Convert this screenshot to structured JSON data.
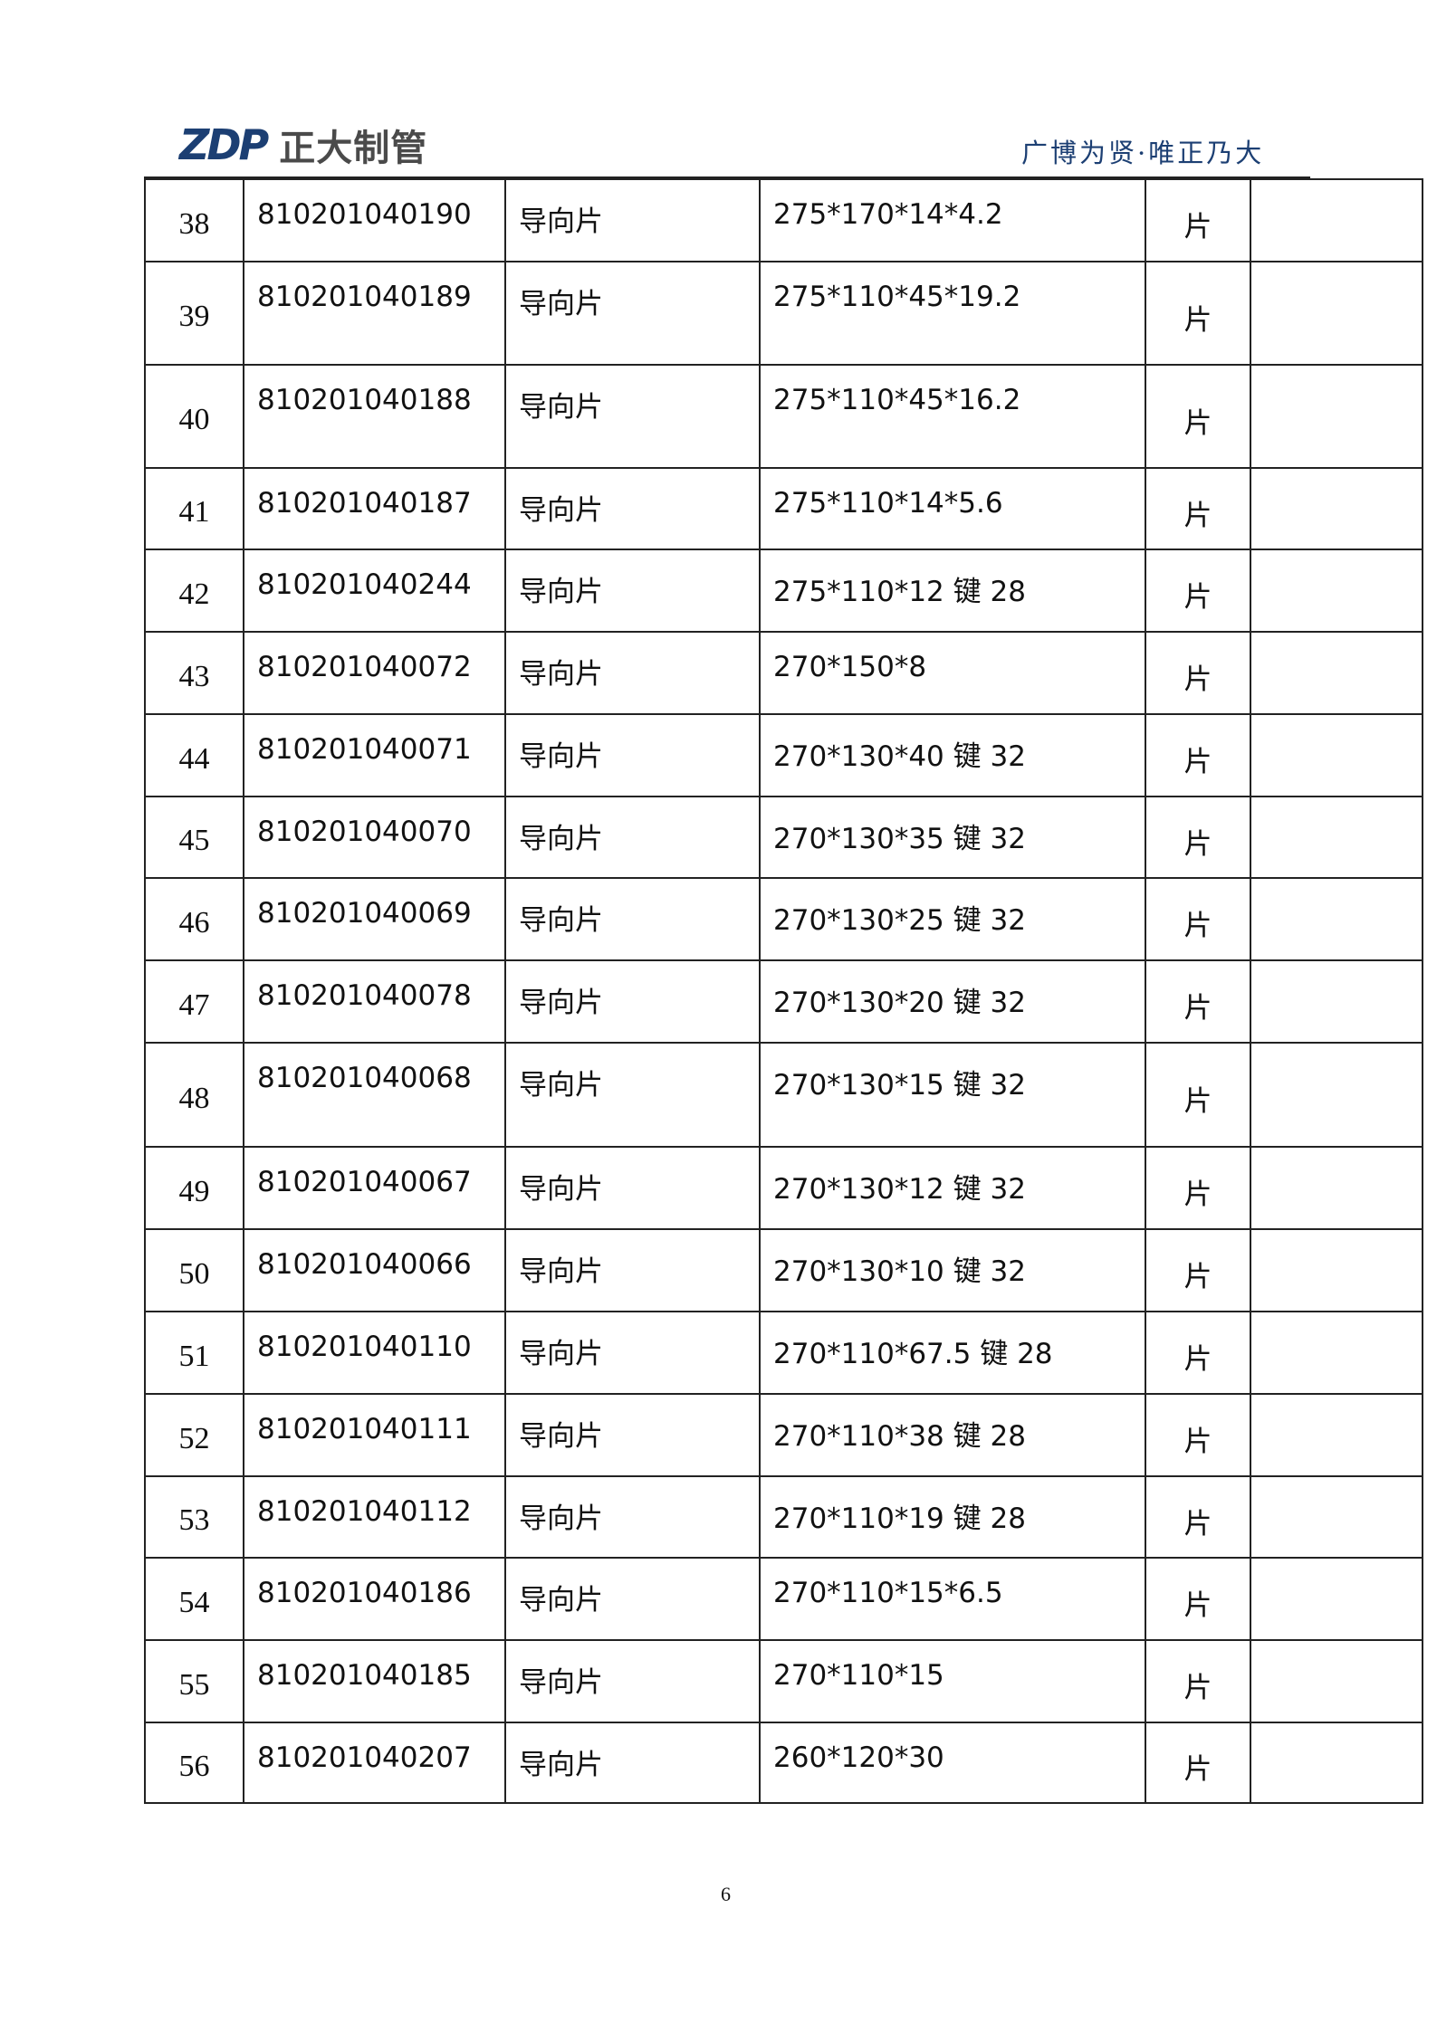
{
  "header": {
    "logo_mark": "ZDP",
    "logo_text": "正大制管",
    "slogan": "广博为贤·唯正乃大",
    "brand_color": "#1c3f73"
  },
  "table": {
    "rows": [
      {
        "no": "38",
        "code": "810201040190",
        "name": "导向片",
        "spec": "275*170*14*4.2",
        "unit": "片",
        "note": "",
        "h": 91
      },
      {
        "no": "39",
        "code": "810201040189",
        "name": "导向片",
        "spec": "275*110*45*19.2",
        "unit": "片",
        "note": "",
        "h": 114
      },
      {
        "no": "40",
        "code": "810201040188",
        "name": "导向片",
        "spec": "275*110*45*16.2",
        "unit": "片",
        "note": "",
        "h": 114
      },
      {
        "no": "41",
        "code": "810201040187",
        "name": "导向片",
        "spec": "275*110*14*5.6",
        "unit": "片",
        "note": "",
        "h": 90
      },
      {
        "no": "42",
        "code": "810201040244",
        "name": "导向片",
        "spec": "275*110*12 键 28",
        "unit": "片",
        "note": "",
        "h": 91
      },
      {
        "no": "43",
        "code": "810201040072",
        "name": "导向片",
        "spec": "270*150*8",
        "unit": "片",
        "note": "",
        "h": 91
      },
      {
        "no": "44",
        "code": "810201040071",
        "name": "导向片",
        "spec": "270*130*40 键 32",
        "unit": "片",
        "note": "",
        "h": 91
      },
      {
        "no": "45",
        "code": "810201040070",
        "name": "导向片",
        "spec": "270*130*35 键 32",
        "unit": "片",
        "note": "",
        "h": 90
      },
      {
        "no": "46",
        "code": "810201040069",
        "name": "导向片",
        "spec": "270*130*25 键 32",
        "unit": "片",
        "note": "",
        "h": 91
      },
      {
        "no": "47",
        "code": "810201040078",
        "name": "导向片",
        "spec": "270*130*20 键 32",
        "unit": "片",
        "note": "",
        "h": 91
      },
      {
        "no": "48",
        "code": "810201040068",
        "name": "导向片",
        "spec": "270*130*15 键 32",
        "unit": "片",
        "note": "",
        "h": 115
      },
      {
        "no": "49",
        "code": "810201040067",
        "name": "导向片",
        "spec": "270*130*12 键 32",
        "unit": "片",
        "note": "",
        "h": 91
      },
      {
        "no": "50",
        "code": "810201040066",
        "name": "导向片",
        "spec": "270*130*10 键 32",
        "unit": "片",
        "note": "",
        "h": 91
      },
      {
        "no": "51",
        "code": "810201040110",
        "name": "导向片",
        "spec": "270*110*67.5 键 28",
        "unit": "片",
        "note": "",
        "h": 91
      },
      {
        "no": "52",
        "code": "810201040111",
        "name": "导向片",
        "spec": "270*110*38 键 28",
        "unit": "片",
        "note": "",
        "h": 91
      },
      {
        "no": "53",
        "code": "810201040112",
        "name": "导向片",
        "spec": "270*110*19 键 28",
        "unit": "片",
        "note": "",
        "h": 90
      },
      {
        "no": "54",
        "code": "810201040186",
        "name": "导向片",
        "spec": "270*110*15*6.5",
        "unit": "片",
        "note": "",
        "h": 91
      },
      {
        "no": "55",
        "code": "810201040185",
        "name": "导向片",
        "spec": "270*110*15",
        "unit": "片",
        "note": "",
        "h": 91
      },
      {
        "no": "56",
        "code": "810201040207",
        "name": "导向片",
        "spec": "260*120*30",
        "unit": "片",
        "note": "",
        "h": 89
      }
    ]
  },
  "footer": {
    "page_number": "6"
  }
}
